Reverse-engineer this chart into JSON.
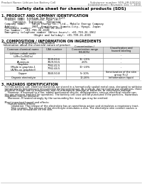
{
  "bg_color": "#ffffff",
  "header_left": "Product Name: Lithium Ion Battery Cell",
  "header_right_line1": "Substance number: SDS-LIB-000010",
  "header_right_line2": "Establishment / Revision: Dec 7, 2010",
  "title": "Safety data sheet for chemical products (SDS)",
  "section1_title": "1. PRODUCT AND COMPANY IDENTIFICATION",
  "section1_bullets": [
    "  Product name: Lithium Ion Battery Cell",
    "  Product code: Cylindrical-type cell",
    "       ISR18650, ISR18650L, ISR18650A",
    "  Company name:    Sanyo Energy Co., Ltd., Mobile Energy Company",
    "  Address:         2001, Kaminaizen, Sumoto-City, Hyogo, Japan",
    "  Telephone number:    +81-799-26-4111",
    "  Fax number:  +81-799-26-4120",
    "  Emergency telephone number (After-hours): +81-799-26-3962",
    "                    (Night and holiday): +81-799-26-4101"
  ],
  "section2_title": "2. COMPOSITION / INFORMATION ON INGREDIENTS",
  "section2_sub": "  Substance or preparation: Preparation",
  "section2_table_header": "  Information about the chemical nature of product",
  "table_col1": "Common chemical name",
  "table_col2": "CAS number",
  "table_col3": "Concentration /\nConcentration range\n(90-80%)",
  "table_col4": "Classification and\nhazard labeling",
  "table_rows": [
    [
      "Lithium cobalt oxide\n(LiMn-Co(NiO)x)",
      "-",
      "-",
      "-"
    ],
    [
      "Iron\nAluminum",
      "7439-89-6\n7429-90-5",
      "16~25%\n2.6%",
      "-\n-"
    ],
    [
      "Graphite\n(Made in graphite-1\n(A7Bo-ox graphite))",
      "7782-42-5\n7782-44-5",
      "10~20%",
      "-"
    ],
    [
      "Copper",
      "7440-50-8",
      "5~10%",
      "Sensitization of the skin\ngroup R=2"
    ],
    [
      "Organic electrolyte",
      "-",
      "10-20%",
      "Inflammation liquid"
    ]
  ],
  "section3_title": "3. HAZARDS IDENTIFICATION",
  "section3_lines": [
    "    For this battery cell, chemical materials are stored in a hermetically sealed metal case, designed to withstand",
    "    temperatures and pressure encountered during normal use. As a result, during normal use conditions, there is no",
    "    physical change due to evaporation and no mechanical damage of batteries, or electrolyte leakage.",
    "        However, if exposed to a fire, added mechanical shocks, disintegration, serious electrical misuse can,",
    "    the gas releases emitted (or operates). The battery cell case will be punctured if the particles, hazardous",
    "    materials may be released.",
    "        Moreover, if heated strongly by the surrounding fire, toxic gas may be emitted.",
    "",
    "    Most important hazard and effects:",
    "        Human health effects:",
    "            Inhalation: The release of the electrolyte has an anesthesia action and stimulates a respiratory tract.",
    "            Skin contact: The release of the electrolyte stimulates a skin. The electrolyte skin contact causes a",
    "            sore and stimulation on the skin."
  ],
  "footer_line": true
}
